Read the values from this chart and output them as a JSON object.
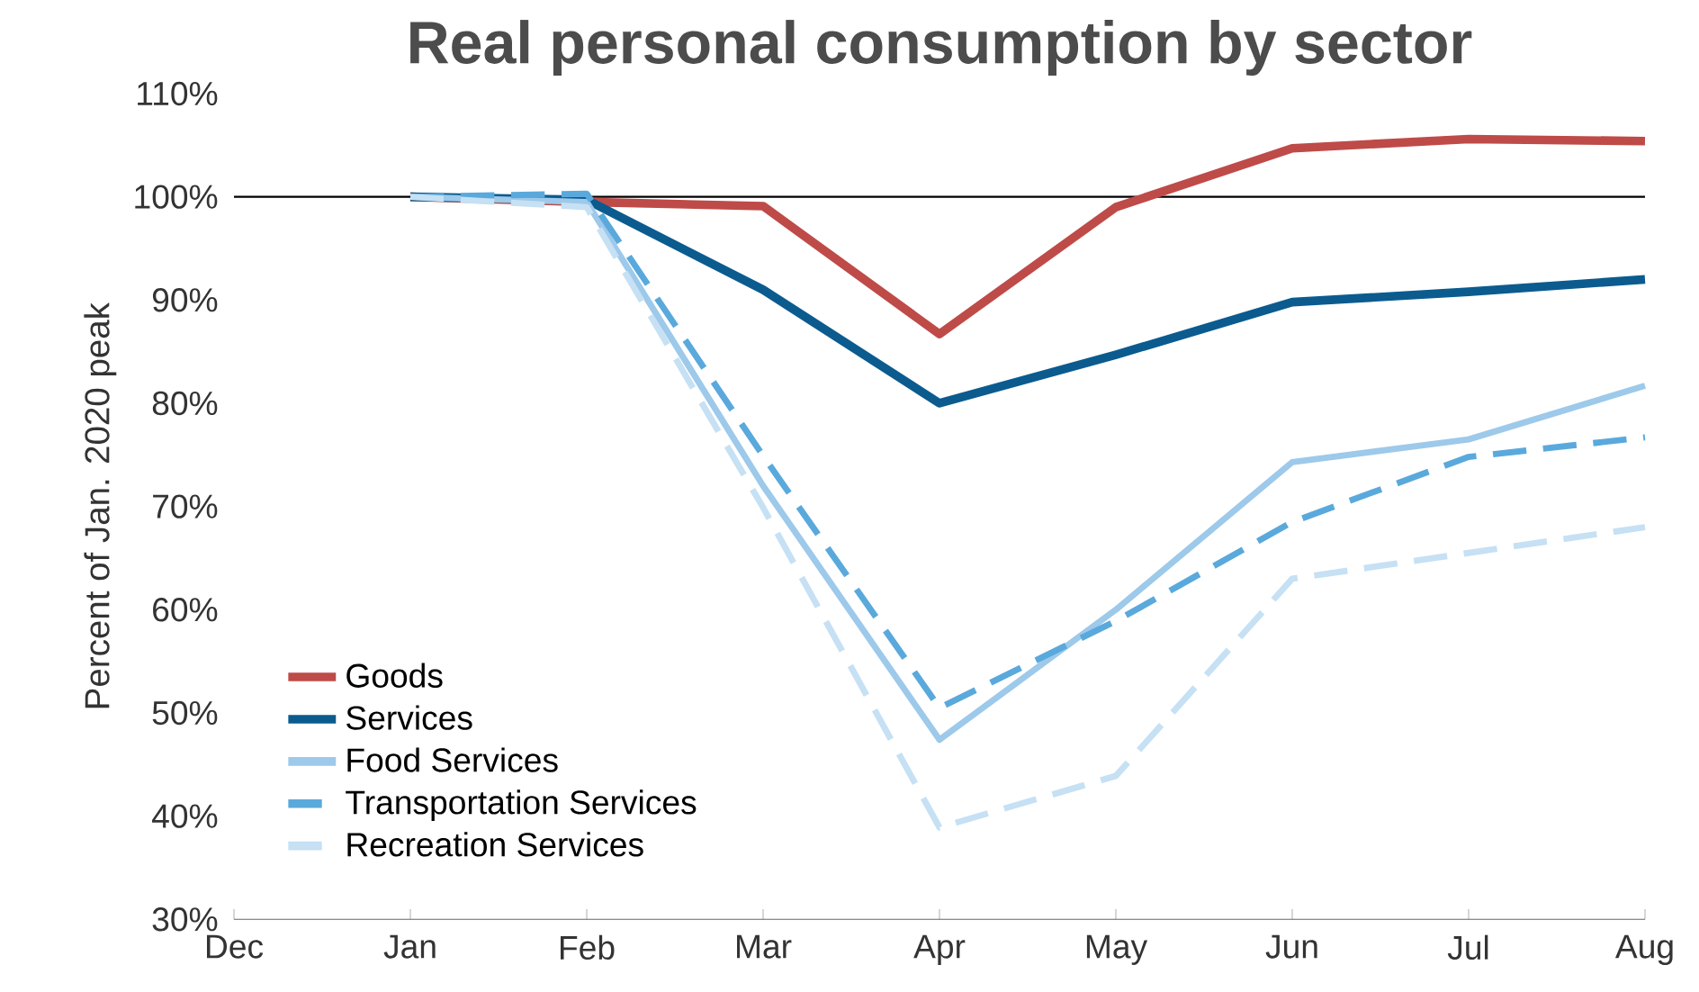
{
  "chart_data": {
    "type": "line",
    "title": "Real personal consumption by sector",
    "ylabel": "Percent of Jan. 2020 peak",
    "categories": [
      "Dec",
      "Jan",
      "Feb",
      "Mar",
      "Apr",
      "May",
      "Jun",
      "Jul",
      "Aug"
    ],
    "series": [
      {
        "name": "Goods",
        "color": "#be4b48",
        "line_style": "solid",
        "values": [
          null,
          100,
          99.5,
          99.1,
          86.7,
          99,
          104.7,
          105.6,
          105.4
        ]
      },
      {
        "name": "Services",
        "color": "#0b5b8f",
        "line_style": "solid",
        "values": [
          null,
          100,
          99.7,
          91,
          80,
          84.7,
          89.8,
          90.8,
          92
        ]
      },
      {
        "name": "Food Services",
        "color": "#9dc9ea",
        "line_style": "solid",
        "values": [
          null,
          100,
          99.5,
          72,
          47.4,
          60,
          74.3,
          76.5,
          81.7
        ]
      },
      {
        "name": "Transportation Services",
        "color": "#5aa9dc",
        "line_style": "dashed",
        "values": [
          null,
          100,
          100.3,
          74.9,
          50.5,
          58.9,
          68.5,
          74.8,
          76.7
        ]
      },
      {
        "name": "Recreation Services",
        "color": "#c6e0f4",
        "line_style": "dashed",
        "values": [
          null,
          100,
          99,
          69.9,
          38.9,
          43.9,
          63,
          65.5,
          68
        ]
      }
    ],
    "ylim": [
      30,
      110
    ],
    "yticks": [
      {
        "value": 30,
        "label": "30%"
      },
      {
        "value": 40,
        "label": "40%"
      },
      {
        "value": 50,
        "label": "50%"
      },
      {
        "value": 60,
        "label": "60%"
      },
      {
        "value": 70,
        "label": "70%"
      },
      {
        "value": 80,
        "label": "80%"
      },
      {
        "value": 90,
        "label": "90%"
      },
      {
        "value": 100,
        "label": "100%"
      },
      {
        "value": 110,
        "label": "110%"
      }
    ],
    "ref_lines": [
      {
        "axis": "y",
        "value": 100,
        "color": "#000000"
      }
    ],
    "legend": "bottom left",
    "grid": false,
    "marker": "none"
  }
}
